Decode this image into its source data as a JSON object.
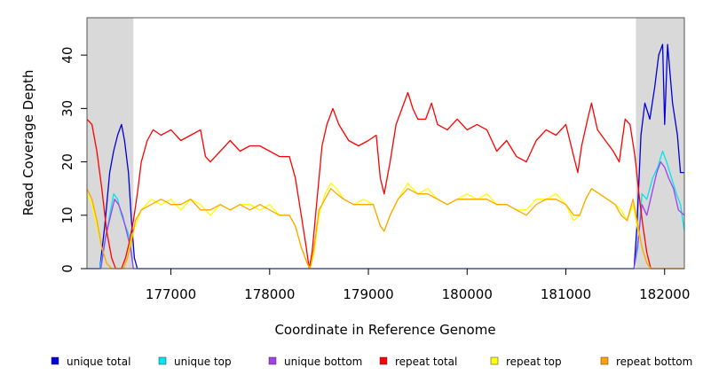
{
  "chart_data": {
    "type": "line",
    "xlabel": "Coordinate in Reference Genome",
    "ylabel": "Read Coverage Depth",
    "xlim": [
      176150,
      182200
    ],
    "ylim": [
      0,
      47
    ],
    "x_ticks": [
      177000,
      178000,
      179000,
      180000,
      181000,
      182000
    ],
    "y_ticks": [
      0,
      10,
      20,
      30,
      40
    ],
    "shaded_regions": [
      [
        176150,
        176620
      ],
      [
        181710,
        182200
      ]
    ],
    "shade_color": "#d9d9d9",
    "series": [
      {
        "name": "unique total",
        "color": "#0000dd",
        "points": [
          [
            176150,
            0
          ],
          [
            176280,
            0
          ],
          [
            176330,
            8
          ],
          [
            176380,
            18
          ],
          [
            176420,
            22
          ],
          [
            176460,
            25
          ],
          [
            176500,
            27
          ],
          [
            176530,
            24
          ],
          [
            176570,
            18
          ],
          [
            176600,
            9
          ],
          [
            176630,
            2
          ],
          [
            176660,
            0
          ],
          [
            181690,
            0
          ],
          [
            181720,
            8
          ],
          [
            181760,
            25
          ],
          [
            181800,
            31
          ],
          [
            181850,
            28
          ],
          [
            181900,
            34
          ],
          [
            181940,
            40
          ],
          [
            181980,
            42
          ],
          [
            182000,
            27
          ],
          [
            182030,
            42
          ],
          [
            182080,
            31
          ],
          [
            182130,
            25
          ],
          [
            182160,
            18
          ],
          [
            182200,
            18
          ]
        ]
      },
      {
        "name": "unique top",
        "color": "#00e5ee",
        "points": [
          [
            176150,
            0
          ],
          [
            176280,
            0
          ],
          [
            176330,
            5
          ],
          [
            176380,
            10
          ],
          [
            176420,
            14
          ],
          [
            176460,
            13
          ],
          [
            176500,
            10
          ],
          [
            176540,
            8
          ],
          [
            176580,
            6
          ],
          [
            176620,
            0
          ],
          [
            181690,
            0
          ],
          [
            181730,
            4
          ],
          [
            181770,
            14
          ],
          [
            181820,
            13
          ],
          [
            181880,
            17
          ],
          [
            181930,
            19
          ],
          [
            181980,
            22
          ],
          [
            182020,
            20
          ],
          [
            182070,
            17
          ],
          [
            182120,
            14
          ],
          [
            182160,
            12
          ],
          [
            182200,
            7
          ]
        ]
      },
      {
        "name": "unique bottom",
        "color": "#a040ee",
        "points": [
          [
            176150,
            0
          ],
          [
            176290,
            0
          ],
          [
            176340,
            6
          ],
          [
            176390,
            10
          ],
          [
            176430,
            13
          ],
          [
            176470,
            12
          ],
          [
            176510,
            10
          ],
          [
            176550,
            7
          ],
          [
            176590,
            4
          ],
          [
            176620,
            0
          ],
          [
            181690,
            0
          ],
          [
            181730,
            5
          ],
          [
            181770,
            12
          ],
          [
            181820,
            10
          ],
          [
            181870,
            14
          ],
          [
            181920,
            18
          ],
          [
            181960,
            20
          ],
          [
            182000,
            19
          ],
          [
            182040,
            17
          ],
          [
            182090,
            15
          ],
          [
            182140,
            11
          ],
          [
            182200,
            10
          ]
        ]
      },
      {
        "name": "repeat total",
        "color": "#ff0000",
        "points": [
          [
            176150,
            28
          ],
          [
            176200,
            27
          ],
          [
            176250,
            22
          ],
          [
            176300,
            15
          ],
          [
            176350,
            7
          ],
          [
            176400,
            2
          ],
          [
            176440,
            0
          ],
          [
            176500,
            0
          ],
          [
            176540,
            2
          ],
          [
            176580,
            5
          ],
          [
            176620,
            9
          ],
          [
            176660,
            14
          ],
          [
            176700,
            20
          ],
          [
            176760,
            24
          ],
          [
            176820,
            26
          ],
          [
            176900,
            25
          ],
          [
            177000,
            26
          ],
          [
            177100,
            24
          ],
          [
            177200,
            25
          ],
          [
            177300,
            26
          ],
          [
            177350,
            21
          ],
          [
            177400,
            20
          ],
          [
            177500,
            22
          ],
          [
            177600,
            24
          ],
          [
            177700,
            22
          ],
          [
            177800,
            23
          ],
          [
            177900,
            23
          ],
          [
            178000,
            22
          ],
          [
            178100,
            21
          ],
          [
            178200,
            21
          ],
          [
            178260,
            17
          ],
          [
            178320,
            10
          ],
          [
            178370,
            4
          ],
          [
            178400,
            0
          ],
          [
            178430,
            3
          ],
          [
            178480,
            13
          ],
          [
            178530,
            23
          ],
          [
            178580,
            27
          ],
          [
            178640,
            30
          ],
          [
            178700,
            27
          ],
          [
            178800,
            24
          ],
          [
            178900,
            23
          ],
          [
            179000,
            24
          ],
          [
            179080,
            25
          ],
          [
            179120,
            17
          ],
          [
            179160,
            14
          ],
          [
            179220,
            20
          ],
          [
            179280,
            27
          ],
          [
            179340,
            30
          ],
          [
            179400,
            33
          ],
          [
            179450,
            30
          ],
          [
            179500,
            28
          ],
          [
            179580,
            28
          ],
          [
            179640,
            31
          ],
          [
            179700,
            27
          ],
          [
            179800,
            26
          ],
          [
            179900,
            28
          ],
          [
            180000,
            26
          ],
          [
            180100,
            27
          ],
          [
            180200,
            26
          ],
          [
            180300,
            22
          ],
          [
            180400,
            24
          ],
          [
            180500,
            21
          ],
          [
            180600,
            20
          ],
          [
            180700,
            24
          ],
          [
            180800,
            26
          ],
          [
            180900,
            25
          ],
          [
            181000,
            27
          ],
          [
            181080,
            21
          ],
          [
            181120,
            18
          ],
          [
            181160,
            23
          ],
          [
            181220,
            28
          ],
          [
            181260,
            31
          ],
          [
            181320,
            26
          ],
          [
            181400,
            24
          ],
          [
            181480,
            22
          ],
          [
            181540,
            20
          ],
          [
            181600,
            28
          ],
          [
            181650,
            27
          ],
          [
            181700,
            21
          ],
          [
            181740,
            14
          ],
          [
            181780,
            8
          ],
          [
            181820,
            3
          ],
          [
            181860,
            0
          ],
          [
            182200,
            0
          ]
        ]
      },
      {
        "name": "repeat top",
        "color": "#ffff00",
        "points": [
          [
            176150,
            14
          ],
          [
            176200,
            12
          ],
          [
            176250,
            8
          ],
          [
            176300,
            4
          ],
          [
            176350,
            1
          ],
          [
            176400,
            0
          ],
          [
            176520,
            0
          ],
          [
            176560,
            2
          ],
          [
            176600,
            6
          ],
          [
            176640,
            8
          ],
          [
            176700,
            11
          ],
          [
            176800,
            13
          ],
          [
            176900,
            12
          ],
          [
            177000,
            13
          ],
          [
            177100,
            11
          ],
          [
            177200,
            13
          ],
          [
            177300,
            12
          ],
          [
            177400,
            10
          ],
          [
            177500,
            12
          ],
          [
            177600,
            11
          ],
          [
            177700,
            12
          ],
          [
            177800,
            12
          ],
          [
            177900,
            11
          ],
          [
            178000,
            12
          ],
          [
            178100,
            10
          ],
          [
            178200,
            10
          ],
          [
            178260,
            8
          ],
          [
            178320,
            4
          ],
          [
            178380,
            1
          ],
          [
            178410,
            0
          ],
          [
            178450,
            3
          ],
          [
            178500,
            10
          ],
          [
            178560,
            14
          ],
          [
            178620,
            16
          ],
          [
            178680,
            15
          ],
          [
            178750,
            13
          ],
          [
            178850,
            12
          ],
          [
            178950,
            13
          ],
          [
            179050,
            12
          ],
          [
            179120,
            8
          ],
          [
            179160,
            7
          ],
          [
            179220,
            10
          ],
          [
            179300,
            13
          ],
          [
            179400,
            16
          ],
          [
            179500,
            14
          ],
          [
            179600,
            15
          ],
          [
            179700,
            13
          ],
          [
            179800,
            12
          ],
          [
            179900,
            13
          ],
          [
            180000,
            14
          ],
          [
            180100,
            13
          ],
          [
            180200,
            14
          ],
          [
            180300,
            12
          ],
          [
            180400,
            12
          ],
          [
            180500,
            11
          ],
          [
            180600,
            11
          ],
          [
            180700,
            13
          ],
          [
            180800,
            13
          ],
          [
            180900,
            14
          ],
          [
            181000,
            12
          ],
          [
            181080,
            9
          ],
          [
            181140,
            10
          ],
          [
            181200,
            13
          ],
          [
            181260,
            15
          ],
          [
            181340,
            14
          ],
          [
            181420,
            13
          ],
          [
            181500,
            12
          ],
          [
            181560,
            11
          ],
          [
            181620,
            9
          ],
          [
            181680,
            12
          ],
          [
            181720,
            8
          ],
          [
            181770,
            4
          ],
          [
            181820,
            1
          ],
          [
            181860,
            0
          ],
          [
            182200,
            0
          ]
        ]
      },
      {
        "name": "repeat bottom",
        "color": "#ffa500",
        "points": [
          [
            176150,
            15
          ],
          [
            176200,
            13
          ],
          [
            176250,
            9
          ],
          [
            176300,
            4
          ],
          [
            176350,
            1
          ],
          [
            176400,
            0
          ],
          [
            176520,
            0
          ],
          [
            176560,
            2
          ],
          [
            176600,
            5
          ],
          [
            176640,
            9
          ],
          [
            176700,
            11
          ],
          [
            176800,
            12
          ],
          [
            176900,
            13
          ],
          [
            177000,
            12
          ],
          [
            177100,
            12
          ],
          [
            177200,
            13
          ],
          [
            177300,
            11
          ],
          [
            177400,
            11
          ],
          [
            177500,
            12
          ],
          [
            177600,
            11
          ],
          [
            177700,
            12
          ],
          [
            177800,
            11
          ],
          [
            177900,
            12
          ],
          [
            178000,
            11
          ],
          [
            178100,
            10
          ],
          [
            178200,
            10
          ],
          [
            178260,
            8
          ],
          [
            178320,
            4
          ],
          [
            178380,
            1
          ],
          [
            178410,
            0
          ],
          [
            178450,
            4
          ],
          [
            178500,
            11
          ],
          [
            178560,
            13
          ],
          [
            178620,
            15
          ],
          [
            178680,
            14
          ],
          [
            178750,
            13
          ],
          [
            178850,
            12
          ],
          [
            178950,
            12
          ],
          [
            179050,
            12
          ],
          [
            179120,
            8
          ],
          [
            179160,
            7
          ],
          [
            179220,
            10
          ],
          [
            179300,
            13
          ],
          [
            179400,
            15
          ],
          [
            179500,
            14
          ],
          [
            179600,
            14
          ],
          [
            179700,
            13
          ],
          [
            179800,
            12
          ],
          [
            179900,
            13
          ],
          [
            180000,
            13
          ],
          [
            180100,
            13
          ],
          [
            180200,
            13
          ],
          [
            180300,
            12
          ],
          [
            180400,
            12
          ],
          [
            180500,
            11
          ],
          [
            180600,
            10
          ],
          [
            180700,
            12
          ],
          [
            180800,
            13
          ],
          [
            180900,
            13
          ],
          [
            181000,
            12
          ],
          [
            181080,
            10
          ],
          [
            181140,
            10
          ],
          [
            181200,
            13
          ],
          [
            181260,
            15
          ],
          [
            181340,
            14
          ],
          [
            181420,
            13
          ],
          [
            181500,
            12
          ],
          [
            181560,
            10
          ],
          [
            181620,
            9
          ],
          [
            181680,
            13
          ],
          [
            181720,
            9
          ],
          [
            181770,
            4
          ],
          [
            181820,
            1
          ],
          [
            181860,
            0
          ],
          [
            182200,
            0
          ]
        ]
      }
    ],
    "legend": [
      {
        "label": "unique total",
        "color": "#0000dd"
      },
      {
        "label": "unique top",
        "color": "#00e5ee"
      },
      {
        "label": "unique bottom",
        "color": "#a040ee"
      },
      {
        "label": "repeat total",
        "color": "#ff0000"
      },
      {
        "label": "repeat top",
        "color": "#ffff00"
      },
      {
        "label": "repeat bottom",
        "color": "#ffa500"
      }
    ],
    "legend_position": "bottom"
  }
}
